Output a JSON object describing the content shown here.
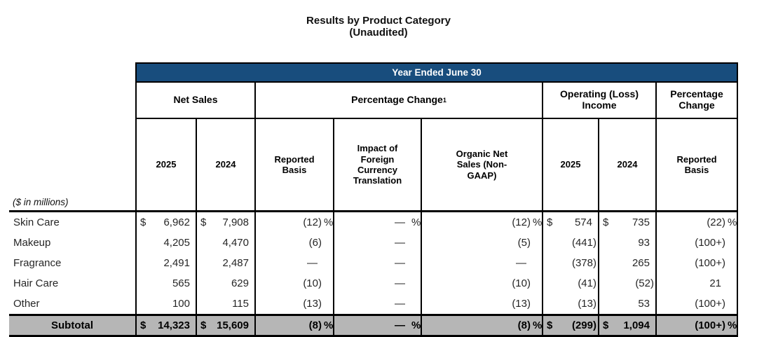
{
  "title": {
    "line1": "Results by Product Category",
    "line2": "(Unaudited)"
  },
  "colors": {
    "header_band_blue": "#184D7D",
    "subtotal_gray": "#B6B6B6",
    "border_black": "#000000"
  },
  "table": {
    "band_title": "Year Ended June 30",
    "group_headers": {
      "net_sales": "Net Sales",
      "percentage_change": "Percentage Change",
      "percentage_change_superscript": "1",
      "operating_income": "Operating (Loss) Income",
      "percentage_change_right": "Percentage Change"
    },
    "column_headers": {
      "ns_2025": "2025",
      "ns_2024": "2024",
      "reported_basis": "Reported Basis",
      "fx_impact": "Impact of Foreign Currency Translation",
      "organic": "Organic Net Sales (Non-GAAP)",
      "op_2025": "2025",
      "op_2024": "2024",
      "reported_basis_right": "Reported Basis"
    },
    "units_note": "($ in millions)",
    "rows": [
      {
        "label": "Skin Care",
        "ns25_sym": "$",
        "ns25": "6,962",
        "ns24_sym": "$",
        "ns24": "7,908",
        "rb": "(12)",
        "rb_suf": "%",
        "fx": "—",
        "fx_suf": "%",
        "org": "(12)",
        "org_suf": "%",
        "op25_sym": "$",
        "op25": "574",
        "op24_sym": "$",
        "op24": "735",
        "pc": "(22)",
        "pc_suf": "%"
      },
      {
        "label": "Makeup",
        "ns25_sym": "",
        "ns25": "4,205",
        "ns24_sym": "",
        "ns24": "4,470",
        "rb": "(6)",
        "rb_suf": "",
        "fx": "—",
        "fx_suf": "",
        "org": "(5)",
        "org_suf": "",
        "op25_sym": "",
        "op25": "(441)",
        "op24_sym": "",
        "op24": "93",
        "pc": "(100+)",
        "pc_suf": ""
      },
      {
        "label": "Fragrance",
        "ns25_sym": "",
        "ns25": "2,491",
        "ns24_sym": "",
        "ns24": "2,487",
        "rb": "—",
        "rb_suf": "",
        "fx": "—",
        "fx_suf": "",
        "org": "—",
        "org_suf": "",
        "op25_sym": "",
        "op25": "(378)",
        "op24_sym": "",
        "op24": "265",
        "pc": "(100+)",
        "pc_suf": ""
      },
      {
        "label": "Hair Care",
        "ns25_sym": "",
        "ns25": "565",
        "ns24_sym": "",
        "ns24": "629",
        "rb": "(10)",
        "rb_suf": "",
        "fx": "—",
        "fx_suf": "",
        "org": "(10)",
        "org_suf": "",
        "op25_sym": "",
        "op25": "(41)",
        "op24_sym": "",
        "op24": "(52)",
        "pc": "21",
        "pc_suf": ""
      },
      {
        "label": "Other",
        "ns25_sym": "",
        "ns25": "100",
        "ns24_sym": "",
        "ns24": "115",
        "rb": "(13)",
        "rb_suf": "",
        "fx": "—",
        "fx_suf": "",
        "org": "(13)",
        "org_suf": "",
        "op25_sym": "",
        "op25": "(13)",
        "op24_sym": "",
        "op24": "53",
        "pc": "(100+)",
        "pc_suf": ""
      }
    ],
    "subtotal": {
      "label": "Subtotal",
      "ns25_sym": "$",
      "ns25": "14,323",
      "ns24_sym": "$",
      "ns24": "15,609",
      "rb": "(8)",
      "rb_suf": "%",
      "fx": "—",
      "fx_suf": "%",
      "org": "(8)",
      "org_suf": "%",
      "op25_sym": "$",
      "op25": "(299)",
      "op24_sym": "$",
      "op24": "1,094",
      "pc": "(100+)",
      "pc_suf": "%"
    }
  }
}
